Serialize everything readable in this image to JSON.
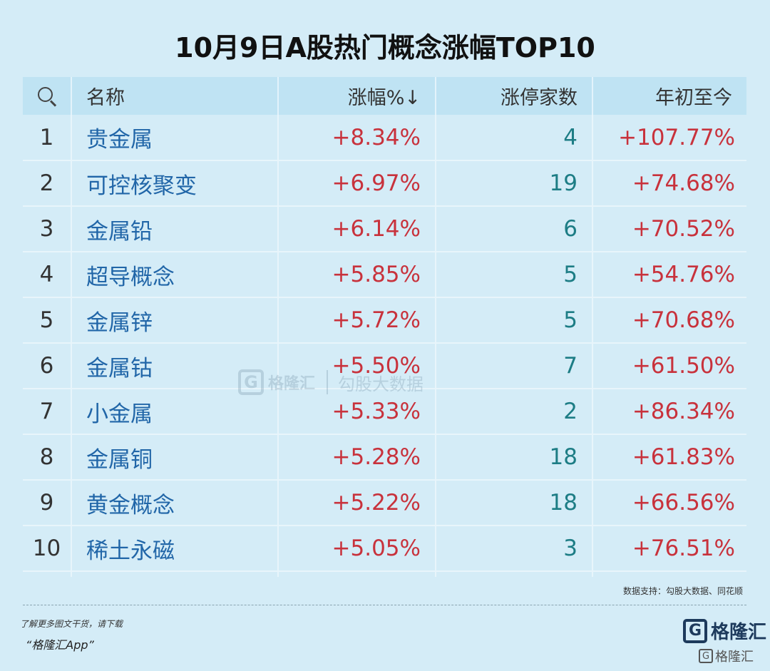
{
  "title": "10月9日A股热门概念涨幅TOP10",
  "table": {
    "headers": {
      "name": "名称",
      "pct": "涨幅%↓",
      "count": "涨停家数",
      "ytd": "年初至今"
    },
    "rows": [
      {
        "idx": "1",
        "name": "贵金属",
        "pct": "+8.34%",
        "count": "4",
        "ytd": "+107.77%"
      },
      {
        "idx": "2",
        "name": "可控核聚变",
        "pct": "+6.97%",
        "count": "19",
        "ytd": "+74.68%"
      },
      {
        "idx": "3",
        "name": "金属铅",
        "pct": "+6.14%",
        "count": "6",
        "ytd": "+70.52%"
      },
      {
        "idx": "4",
        "name": "超导概念",
        "pct": "+5.85%",
        "count": "5",
        "ytd": "+54.76%"
      },
      {
        "idx": "5",
        "name": "金属锌",
        "pct": "+5.72%",
        "count": "5",
        "ytd": "+70.68%"
      },
      {
        "idx": "6",
        "name": "金属钴",
        "pct": "+5.50%",
        "count": "7",
        "ytd": "+61.50%"
      },
      {
        "idx": "7",
        "name": "小金属",
        "pct": "+5.33%",
        "count": "2",
        "ytd": "+86.34%"
      },
      {
        "idx": "8",
        "name": "金属铜",
        "pct": "+5.28%",
        "count": "18",
        "ytd": "+61.83%"
      },
      {
        "idx": "9",
        "name": "黄金概念",
        "pct": "+5.22%",
        "count": "18",
        "ytd": "+66.56%"
      },
      {
        "idx": "10",
        "name": "稀土永磁",
        "pct": "+5.05%",
        "count": "3",
        "ytd": "+76.51%"
      }
    ]
  },
  "source": "数据支持：勾股大数据、同花顺",
  "promo": {
    "line1": "了解更多图文干货，请下载",
    "app": "“格隆汇App”"
  },
  "watermark": {
    "g": "G",
    "brand": "格隆汇",
    "brand2": "勾股大数据"
  },
  "logo": {
    "g": "G",
    "text": "格隆汇",
    "small_text": "格隆汇"
  },
  "colors": {
    "background": "#d4ecf7",
    "header_bg": "#bfe3f3",
    "name": "#2166a8",
    "positive": "#c8323c",
    "count": "#1d7d85"
  }
}
